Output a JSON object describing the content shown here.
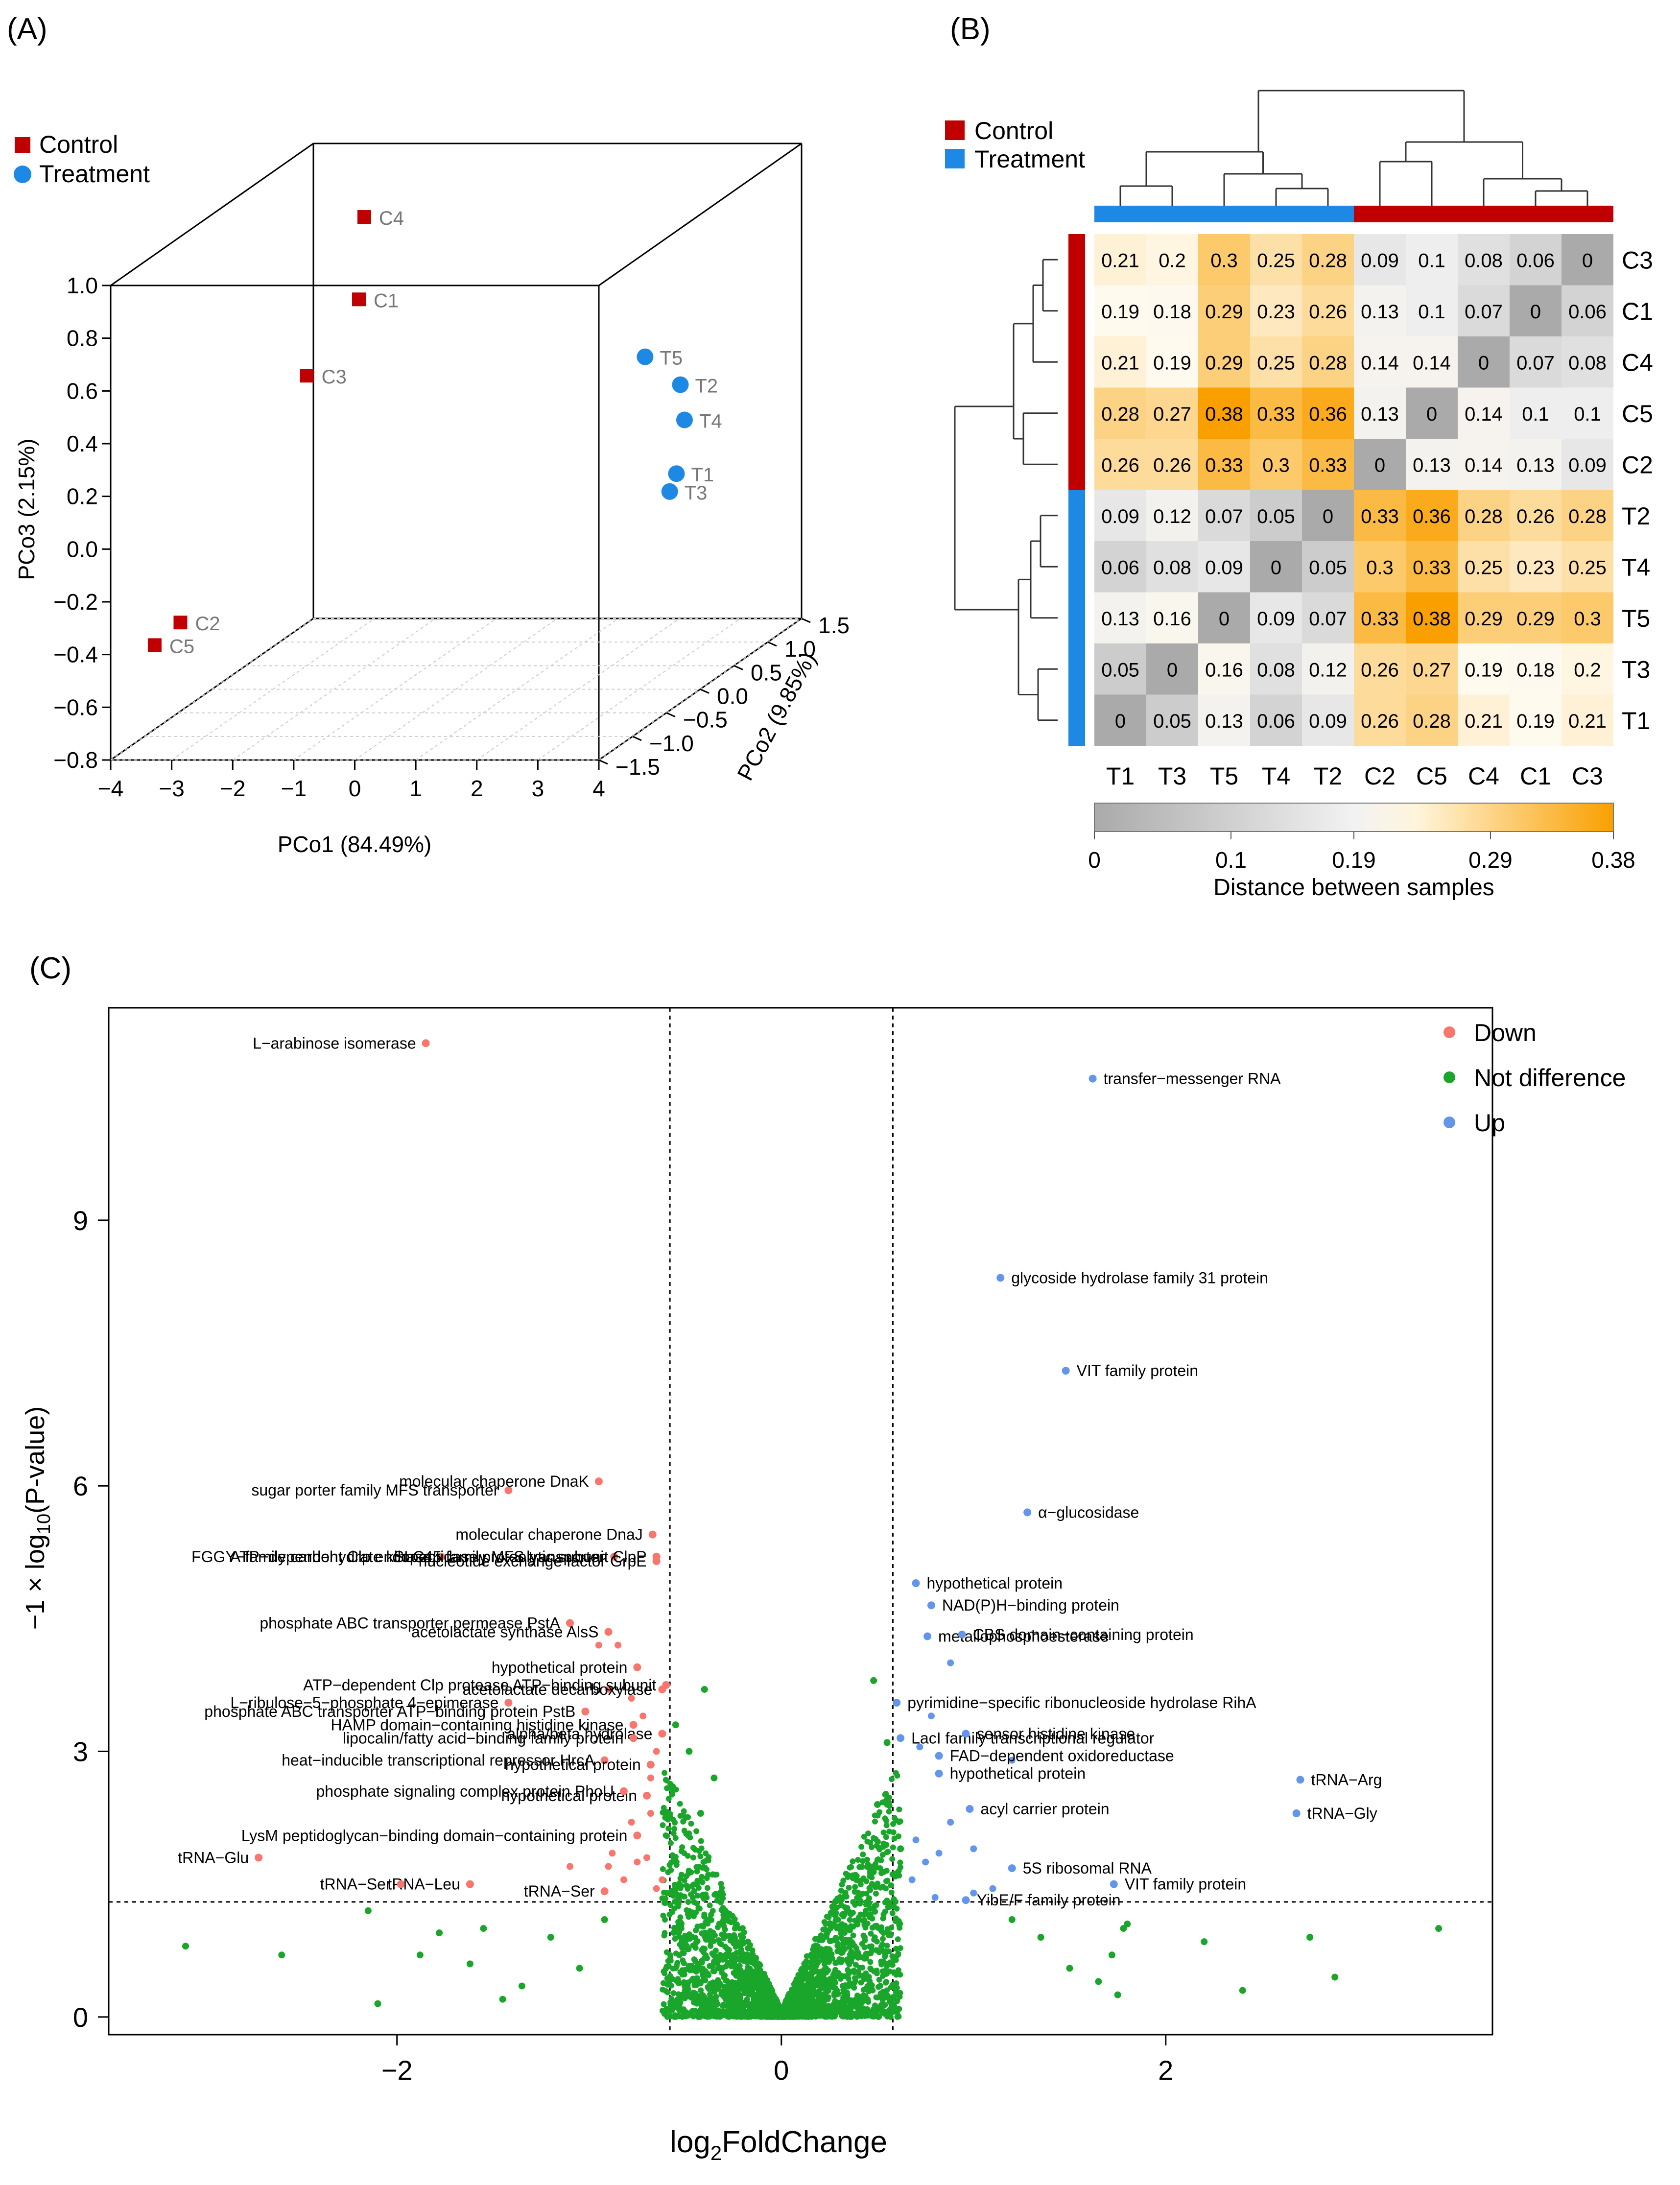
{
  "panel_labels": {
    "a": "(A)",
    "b": "(B)",
    "c": "(C)"
  },
  "chart_data": [
    {
      "type": "scatter",
      "subtype": "3d-pcoa",
      "xlabel": "PCo1 (84.49%)",
      "ylabel": "PCo2 (9.85%)",
      "zlabel": "PCo3 (2.15%)",
      "xlim": [
        -4,
        4
      ],
      "ylim": [
        -1.5,
        1.5
      ],
      "zlim": [
        -0.8,
        1.0
      ],
      "xticks": [
        "−4",
        "−3",
        "−2",
        "−1",
        "0",
        "1",
        "2",
        "3",
        "4"
      ],
      "yticks": [
        "−1.5",
        "−1.0",
        "−0.5",
        "0.0",
        "0.5",
        "1.0",
        "1.5"
      ],
      "zticks": [
        "1.0",
        "0.8",
        "0.6",
        "0.4",
        "0.2",
        "0.0",
        "−0.2",
        "−0.4",
        "−0.6",
        "−0.8"
      ],
      "legend": [
        {
          "label": "Control",
          "color": "#c00000",
          "marker": "square"
        },
        {
          "label": "Treatment",
          "color": "#1e88e5",
          "marker": "circle"
        }
      ],
      "points": [
        {
          "label": "C4",
          "group": "Control",
          "x": -3.0,
          "y": 1.35,
          "z": 0.75
        },
        {
          "label": "C1",
          "group": "Control",
          "x": -2.7,
          "y": 1.0,
          "z": 0.5
        },
        {
          "label": "C3",
          "group": "Control",
          "x": -3.0,
          "y": 0.5,
          "z": 0.3
        },
        {
          "label": "C2",
          "group": "Control",
          "x": -3.3,
          "y": -1.1,
          "z": -0.35
        },
        {
          "label": "C5",
          "group": "Control",
          "x": -3.5,
          "y": -1.3,
          "z": -0.4
        },
        {
          "label": "T5",
          "group": "Treatment",
          "x": 2.1,
          "y": 0.9,
          "z": 0.3
        },
        {
          "label": "T2",
          "group": "Treatment",
          "x": 2.9,
          "y": 0.7,
          "z": 0.23
        },
        {
          "label": "T4",
          "group": "Treatment",
          "x": 3.3,
          "y": 0.4,
          "z": 0.15
        },
        {
          "label": "T1",
          "group": "Treatment",
          "x": 3.5,
          "y": 0.1,
          "z": 0.0
        },
        {
          "label": "T3",
          "group": "Treatment",
          "x": 3.5,
          "y": 0.0,
          "z": -0.05
        }
      ]
    },
    {
      "type": "heatmap",
      "legend": [
        {
          "label": "Control",
          "color": "#c00000"
        },
        {
          "label": "Treatment",
          "color": "#1e88e5"
        }
      ],
      "columns": [
        "T1",
        "T3",
        "T5",
        "T4",
        "T2",
        "C2",
        "C5",
        "C4",
        "C1",
        "C3"
      ],
      "rows": [
        "C3",
        "C1",
        "C4",
        "C5",
        "C2",
        "T2",
        "T4",
        "T5",
        "T3",
        "T1"
      ],
      "column_groups": [
        "Treatment",
        "Treatment",
        "Treatment",
        "Treatment",
        "Treatment",
        "Control",
        "Control",
        "Control",
        "Control",
        "Control"
      ],
      "row_groups": [
        "Control",
        "Control",
        "Control",
        "Control",
        "Control",
        "Treatment",
        "Treatment",
        "Treatment",
        "Treatment",
        "Treatment"
      ],
      "values": [
        [
          0.21,
          0.2,
          0.3,
          0.25,
          0.28,
          0.09,
          0.1,
          0.08,
          0.06,
          0
        ],
        [
          0.19,
          0.18,
          0.29,
          0.23,
          0.26,
          0.13,
          0.1,
          0.07,
          0,
          0.06
        ],
        [
          0.21,
          0.19,
          0.29,
          0.25,
          0.28,
          0.14,
          0.14,
          0,
          0.07,
          0.08
        ],
        [
          0.28,
          0.27,
          0.38,
          0.33,
          0.36,
          0.13,
          0,
          0.14,
          0.1,
          0.1
        ],
        [
          0.26,
          0.26,
          0.33,
          0.3,
          0.33,
          0,
          0.13,
          0.14,
          0.13,
          0.09
        ],
        [
          0.09,
          0.12,
          0.07,
          0.05,
          0,
          0.33,
          0.36,
          0.28,
          0.26,
          0.28
        ],
        [
          0.06,
          0.08,
          0.09,
          0,
          0.05,
          0.3,
          0.33,
          0.25,
          0.23,
          0.25
        ],
        [
          0.13,
          0.16,
          0,
          0.09,
          0.07,
          0.33,
          0.38,
          0.29,
          0.29,
          0.3
        ],
        [
          0.05,
          0,
          0.16,
          0.08,
          0.12,
          0.26,
          0.27,
          0.19,
          0.18,
          0.2
        ],
        [
          0,
          0.05,
          0.13,
          0.06,
          0.09,
          0.26,
          0.28,
          0.21,
          0.19,
          0.21
        ]
      ],
      "colorbar": {
        "ticks": [
          0,
          0.1,
          0.19,
          0.29,
          0.38
        ],
        "tick_labels": [
          "0",
          "0.1",
          "0.19",
          "0.29",
          "0.38"
        ],
        "label": "Distance between samples",
        "colors": [
          "#aaaaaa",
          "#f1f1f1",
          "#fff8e6",
          "#f9a000"
        ]
      }
    },
    {
      "type": "scatter",
      "subtype": "volcano",
      "xlabel": "log2FoldChange",
      "ylabel": "−1 × log10(P-value)",
      "xlim": [
        -3.5,
        3.7
      ],
      "ylim": [
        -0.2,
        11.4
      ],
      "xticks": [
        "−2",
        "0",
        "2"
      ],
      "yticks": [
        "0",
        "3",
        "6",
        "9"
      ],
      "thresholds": {
        "logfc": [
          -0.58,
          0.58
        ],
        "pvalue_line": 1.3
      },
      "legend": [
        {
          "label": "Down",
          "color": "#f8766d"
        },
        {
          "label": "Not difference",
          "color": "#1aa52b"
        },
        {
          "label": "Up",
          "color": "#6495ed"
        }
      ],
      "labeled_points": [
        {
          "label": "L−arabinose isomerase",
          "x": -1.85,
          "y": 11.0,
          "group": "Down"
        },
        {
          "label": "sugar porter family MFS transporter",
          "x": -1.42,
          "y": 5.95,
          "group": "Down"
        },
        {
          "label": "molecular chaperone DnaK",
          "x": -0.95,
          "y": 6.05,
          "group": "Down"
        },
        {
          "label": "molecular chaperone DnaJ",
          "x": -0.67,
          "y": 5.45,
          "group": "Down"
        },
        {
          "label": "FGGY−family carbohydrate kinase",
          "x": -1.77,
          "y": 5.2,
          "group": "Down"
        },
        {
          "label": "SLC45 family MFS transporter",
          "x": -0.87,
          "y": 5.2,
          "group": "Down"
        },
        {
          "label": "ATP−dependent Clp endopeptidase proteolytic subunit ClpP",
          "x": -0.65,
          "y": 5.2,
          "group": "Down"
        },
        {
          "label": "nucleotide exchange factor GrpE",
          "x": -0.65,
          "y": 5.15,
          "group": "Down"
        },
        {
          "label": "phosphate ABC transporter permease PstA",
          "x": -1.1,
          "y": 4.45,
          "group": "Down"
        },
        {
          "label": "acetolactate synthase AlsS",
          "x": -0.9,
          "y": 4.35,
          "group": "Down"
        },
        {
          "label": "hypothetical protein",
          "x": -0.75,
          "y": 3.95,
          "group": "Down"
        },
        {
          "label": "L−ribulose−5−phosphate 4−epimerase",
          "x": -1.42,
          "y": 3.55,
          "group": "Down"
        },
        {
          "label": "ATP−dependent Clp protease ATP−binding subunit",
          "x": -0.6,
          "y": 3.75,
          "group": "Down"
        },
        {
          "label": "acetolactate decarboxylase",
          "x": -0.62,
          "y": 3.7,
          "group": "Down"
        },
        {
          "label": "phosphate ABC transporter ATP−binding protein PstB",
          "x": -1.02,
          "y": 3.45,
          "group": "Down"
        },
        {
          "label": "HAMP domain−containing histidine kinase",
          "x": -0.77,
          "y": 3.3,
          "group": "Down"
        },
        {
          "label": "alpha/beta hydrolase",
          "x": -0.62,
          "y": 3.2,
          "group": "Down"
        },
        {
          "label": "lipocalin/fatty acid−binding family protein",
          "x": -0.77,
          "y": 3.15,
          "group": "Down"
        },
        {
          "label": "heat−inducible transcriptional repressor HrcA",
          "x": -0.92,
          "y": 2.9,
          "group": "Down"
        },
        {
          "label": "hypothetical protein",
          "x": -0.68,
          "y": 2.85,
          "group": "Down"
        },
        {
          "label": "hypothetical protein",
          "x": -0.7,
          "y": 2.5,
          "group": "Down"
        },
        {
          "label": "phosphate signaling complex protein PhoU",
          "x": -0.82,
          "y": 2.55,
          "group": "Down"
        },
        {
          "label": "LysM peptidoglycan−binding domain−containing protein",
          "x": -0.75,
          "y": 2.05,
          "group": "Down"
        },
        {
          "label": "tRNA−Glu",
          "x": -2.72,
          "y": 1.8,
          "group": "Down"
        },
        {
          "label": "tRNA−Leu",
          "x": -1.62,
          "y": 1.5,
          "group": "Down"
        },
        {
          "label": "tRNA−Ser",
          "x": -1.98,
          "y": 1.5,
          "group": "Down"
        },
        {
          "label": "tRNA−Ser",
          "x": -0.92,
          "y": 1.42,
          "group": "Down"
        },
        {
          "label": "transfer−messenger RNA",
          "x": 1.62,
          "y": 10.6,
          "group": "Up"
        },
        {
          "label": "glycoside hydrolase family 31 protein",
          "x": 1.14,
          "y": 8.35,
          "group": "Up"
        },
        {
          "label": "VIT family protein",
          "x": 1.48,
          "y": 7.3,
          "group": "Up"
        },
        {
          "label": "α−glucosidase",
          "x": 1.28,
          "y": 5.7,
          "group": "Up"
        },
        {
          "label": "hypothetical protein",
          "x": 0.7,
          "y": 4.9,
          "group": "Up"
        },
        {
          "label": "NAD(P)H−binding protein",
          "x": 0.78,
          "y": 4.65,
          "group": "Up"
        },
        {
          "label": "metallophosphoesterase",
          "x": 0.76,
          "y": 4.3,
          "group": "Up"
        },
        {
          "label": "CBS domain−containing protein",
          "x": 0.94,
          "y": 4.32,
          "group": "Up"
        },
        {
          "label": "pyrimidine−specific ribonucleoside hydrolase RihA",
          "x": 0.6,
          "y": 3.55,
          "group": "Up"
        },
        {
          "label": "LacI family transcriptional regulator",
          "x": 0.62,
          "y": 3.15,
          "group": "Up"
        },
        {
          "label": "sensor histidine kinase",
          "x": 0.96,
          "y": 3.2,
          "group": "Up"
        },
        {
          "label": "FAD−dependent oxidoreductase",
          "x": 0.82,
          "y": 2.95,
          "group": "Up"
        },
        {
          "label": "hypothetical protein",
          "x": 0.82,
          "y": 2.75,
          "group": "Up"
        },
        {
          "label": "acyl carrier protein",
          "x": 0.98,
          "y": 2.35,
          "group": "Up"
        },
        {
          "label": "5S ribosomal RNA",
          "x": 1.2,
          "y": 1.68,
          "group": "Up"
        },
        {
          "label": "VIT family protein",
          "x": 1.73,
          "y": 1.5,
          "group": "Up"
        },
        {
          "label": "YibE/F family protein",
          "x": 0.96,
          "y": 1.32,
          "group": "Up"
        },
        {
          "label": "tRNA−Arg",
          "x": 2.7,
          "y": 2.68,
          "group": "Up"
        },
        {
          "label": "tRNA−Gly",
          "x": 2.68,
          "y": 2.3,
          "group": "Up"
        }
      ],
      "unlabeled_points": {
        "Down": [
          [
            -0.95,
            4.2
          ],
          [
            -0.85,
            4.2
          ],
          [
            -0.78,
            3.6
          ],
          [
            -0.72,
            3.4
          ],
          [
            -0.9,
            3.7
          ],
          [
            -0.65,
            3.0
          ],
          [
            -0.68,
            2.7
          ],
          [
            -0.75,
            1.75
          ],
          [
            -0.62,
            1.55
          ],
          [
            -0.9,
            1.7
          ],
          [
            -0.82,
            1.55
          ],
          [
            -0.7,
            1.8
          ],
          [
            -0.65,
            1.45
          ],
          [
            -0.78,
            2.2
          ],
          [
            -0.68,
            2.3
          ],
          [
            -1.1,
            1.7
          ],
          [
            -0.88,
            1.85
          ]
        ],
        "Up": [
          [
            0.88,
            4.0
          ],
          [
            0.78,
            3.4
          ],
          [
            0.72,
            3.05
          ],
          [
            1.2,
            2.9
          ],
          [
            0.7,
            2.0
          ],
          [
            0.82,
            1.85
          ],
          [
            0.88,
            2.2
          ],
          [
            1.0,
            1.9
          ],
          [
            0.75,
            1.75
          ],
          [
            0.68,
            1.55
          ],
          [
            1.1,
            1.45
          ],
          [
            0.8,
            1.35
          ],
          [
            1.0,
            1.4
          ]
        ],
        "Not_difference_extra": [
          [
            -3.1,
            0.8
          ],
          [
            -2.6,
            0.7
          ],
          [
            -2.15,
            1.2
          ],
          [
            -1.88,
            0.7
          ],
          [
            -1.78,
            0.95
          ],
          [
            -1.62,
            0.6
          ],
          [
            -1.55,
            1.0
          ],
          [
            -1.45,
            0.2
          ],
          [
            -1.35,
            0.35
          ],
          [
            -1.2,
            0.9
          ],
          [
            -1.05,
            0.55
          ],
          [
            -0.92,
            1.1
          ],
          [
            -0.55,
            3.3
          ],
          [
            -0.48,
            3.0
          ],
          [
            -0.42,
            2.3
          ],
          [
            -0.4,
            3.7
          ],
          [
            -0.35,
            2.7
          ],
          [
            0.48,
            3.8
          ],
          [
            0.55,
            3.1
          ],
          [
            0.5,
            2.4
          ],
          [
            0.62,
            1.9
          ],
          [
            1.2,
            1.1
          ],
          [
            1.35,
            0.9
          ],
          [
            1.5,
            0.55
          ],
          [
            1.65,
            0.4
          ],
          [
            1.72,
            0.7
          ],
          [
            1.78,
            1.0
          ],
          [
            1.75,
            0.25
          ],
          [
            1.8,
            1.05
          ],
          [
            2.2,
            0.85
          ],
          [
            2.75,
            0.9
          ],
          [
            2.88,
            0.45
          ],
          [
            3.42,
            1.0
          ],
          [
            -2.1,
            0.15
          ],
          [
            2.4,
            0.3
          ]
        ]
      }
    }
  ]
}
